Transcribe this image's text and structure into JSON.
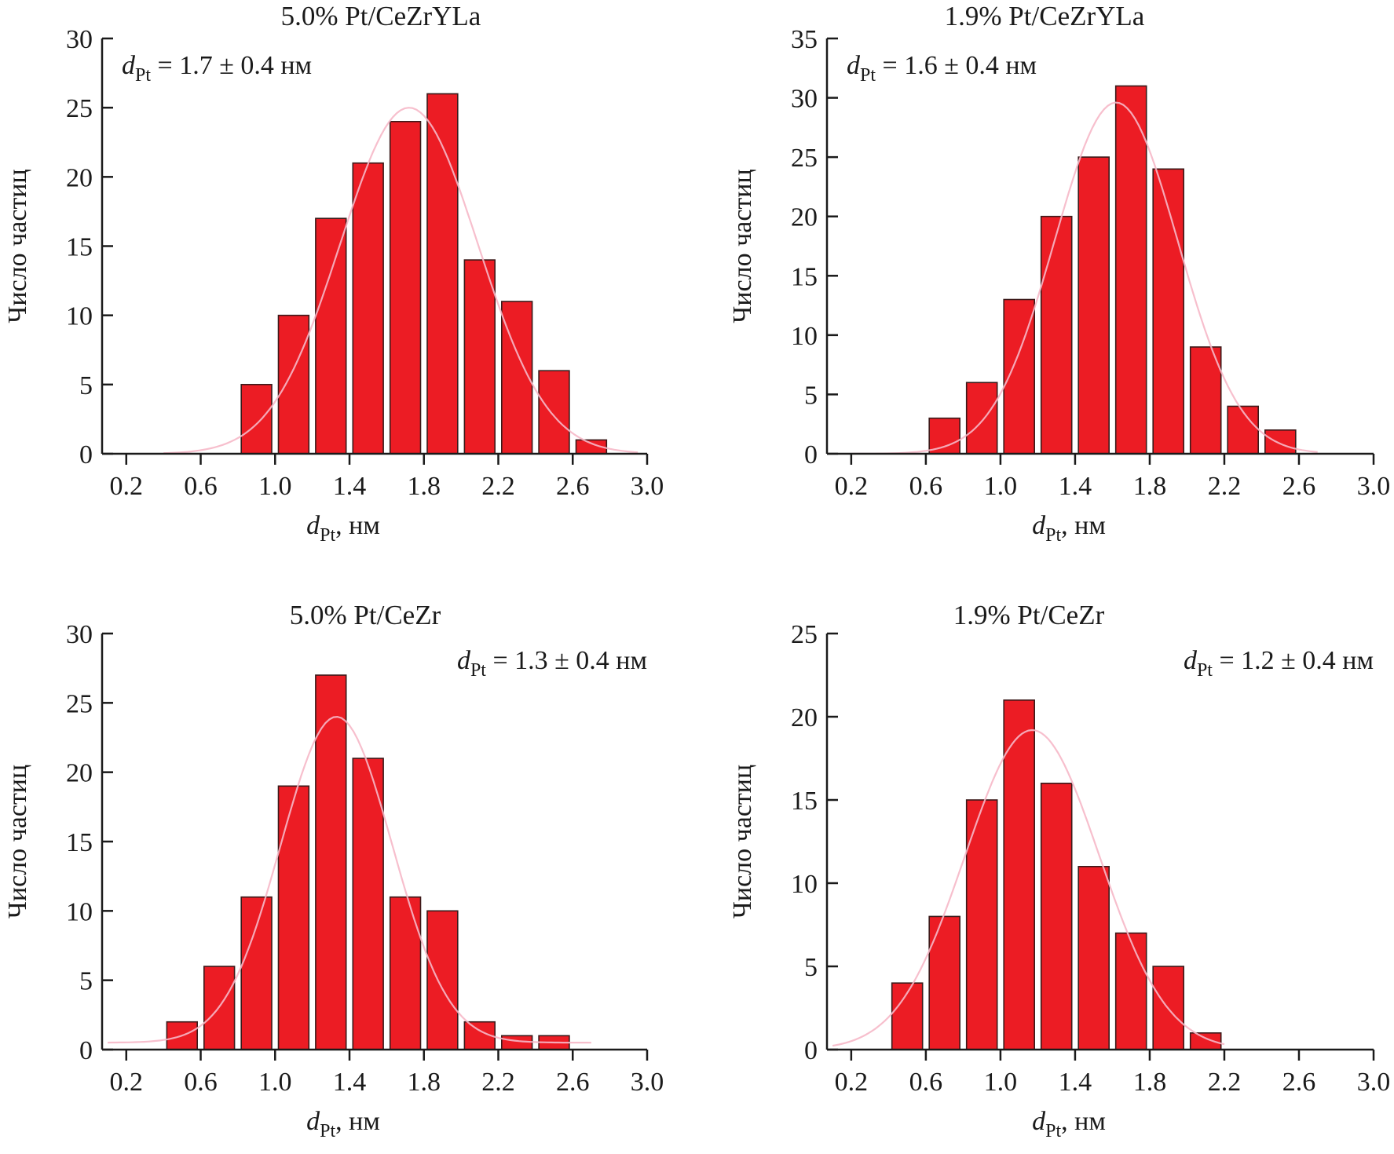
{
  "figure": {
    "bar_fill": "#ec1c24",
    "bar_stroke": "#3a1a1a",
    "fit_color": "#f6b8c8",
    "axis_color": "#1a1a1a"
  },
  "chart_data": [
    {
      "type": "bar",
      "id": "tl",
      "title": "5.0% Pt/CeZrYLa",
      "annotation": {
        "var": "d",
        "sub": "Pt",
        "text": " = 1.7 ± 0.4 нм",
        "placement": "top-left"
      },
      "xlabel": {
        "var": "d",
        "sub": "Pt",
        "text": ", нм"
      },
      "ylabel": "Число частиц",
      "xlim": [
        0.07,
        3.0
      ],
      "ylim": [
        0,
        30
      ],
      "xticks": [
        "0.2",
        "0.6",
        "1.0",
        "1.4",
        "1.8",
        "2.2",
        "2.6",
        "3.0"
      ],
      "yticks": [
        "0",
        "5",
        "10",
        "15",
        "20",
        "25",
        "30"
      ],
      "bin_width": 0.2,
      "x": [
        0.9,
        1.1,
        1.3,
        1.5,
        1.7,
        1.9,
        2.1,
        2.3,
        2.5,
        2.7
      ],
      "values": [
        5,
        10,
        17,
        21,
        24,
        26,
        14,
        11,
        6,
        1
      ],
      "fit": {
        "type": "gaussian",
        "mean": 1.72,
        "peak": 25,
        "sigma": 0.37,
        "range": [
          0.4,
          2.95
        ]
      }
    },
    {
      "type": "bar",
      "id": "tr",
      "title": "1.9% Pt/CeZrYLa",
      "annotation": {
        "var": "d",
        "sub": "Pt",
        "text": " = 1.6 ± 0.4 нм",
        "placement": "top-left"
      },
      "xlabel": {
        "var": "d",
        "sub": "Pt",
        "text": ", нм"
      },
      "ylabel": "Число частиц",
      "xlim": [
        0.07,
        3.0
      ],
      "ylim": [
        0,
        35
      ],
      "xticks": [
        "0.2",
        "0.6",
        "1.0",
        "1.4",
        "1.8",
        "2.2",
        "2.6",
        "3.0"
      ],
      "yticks": [
        "0",
        "5",
        "10",
        "15",
        "20",
        "25",
        "30",
        "35"
      ],
      "bin_width": 0.2,
      "x": [
        0.7,
        0.9,
        1.1,
        1.3,
        1.5,
        1.7,
        1.9,
        2.1,
        2.3,
        2.5
      ],
      "values": [
        3,
        6,
        13,
        20,
        25,
        31,
        24,
        9,
        4,
        2
      ],
      "fit": {
        "type": "gaussian",
        "mean": 1.62,
        "peak": 29.6,
        "sigma": 0.33,
        "range": [
          0.2,
          2.7
        ]
      }
    },
    {
      "type": "bar",
      "id": "bl",
      "title": "5.0% Pt/CeZr",
      "annotation": {
        "var": "d",
        "sub": "Pt",
        "text": " = 1.3 ± 0.4 нм",
        "placement": "top-right"
      },
      "xlabel": {
        "var": "d",
        "sub": "Pt",
        "text": ", нм"
      },
      "ylabel": "Число частиц",
      "xlim": [
        0.07,
        3.0
      ],
      "ylim": [
        0,
        30
      ],
      "xticks": [
        "0.2",
        "0.6",
        "1.0",
        "1.4",
        "1.8",
        "2.2",
        "2.6",
        "3.0"
      ],
      "yticks": [
        "0",
        "5",
        "10",
        "15",
        "20",
        "25",
        "30"
      ],
      "bin_width": 0.2,
      "x": [
        0.5,
        0.7,
        0.9,
        1.1,
        1.3,
        1.5,
        1.7,
        1.9,
        2.1,
        2.3,
        2.5
      ],
      "values": [
        2,
        6,
        11,
        19,
        27,
        21,
        11,
        10,
        2,
        1,
        1
      ],
      "fit": {
        "type": "gaussian",
        "mean": 1.33,
        "peak": 24,
        "sigma": 0.3,
        "baseline": 0.5,
        "range": [
          0.1,
          2.7
        ]
      }
    },
    {
      "type": "bar",
      "id": "br",
      "title": "1.9% Pt/CeZr",
      "annotation": {
        "var": "d",
        "sub": "Pt",
        "text": " = 1.2 ± 0.4 нм",
        "placement": "top-right"
      },
      "xlabel": {
        "var": "d",
        "sub": "Pt",
        "text": ", нм"
      },
      "ylabel": "Число частиц",
      "xlim": [
        0.07,
        3.0
      ],
      "ylim": [
        0,
        25
      ],
      "xticks": [
        "0.2",
        "0.6",
        "1.0",
        "1.4",
        "1.8",
        "2.2",
        "2.6",
        "3.0"
      ],
      "yticks": [
        "0",
        "5",
        "10",
        "15",
        "20",
        "25"
      ],
      "bin_width": 0.2,
      "x": [
        0.5,
        0.7,
        0.9,
        1.1,
        1.3,
        1.5,
        1.7,
        1.9,
        2.1
      ],
      "values": [
        4,
        8,
        15,
        21,
        16,
        11,
        7,
        5,
        1
      ],
      "fit": {
        "type": "gaussian",
        "mean": 1.17,
        "peak": 19.2,
        "sigma": 0.36,
        "range": [
          0.1,
          2.2
        ]
      }
    }
  ]
}
